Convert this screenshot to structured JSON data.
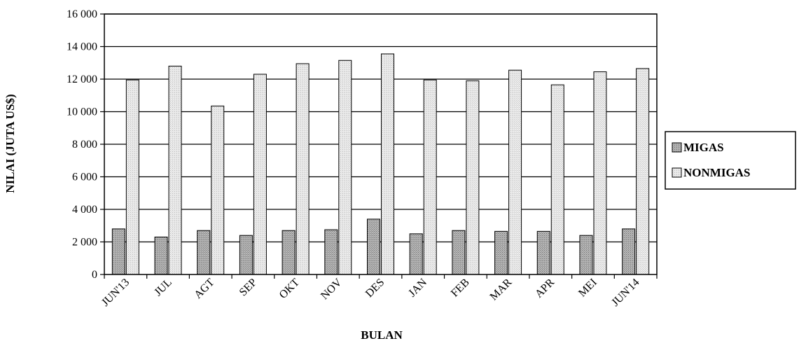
{
  "chart_data": {
    "type": "bar",
    "title": "",
    "xlabel": "BULAN",
    "ylabel": "NILAI (JUTA US$)",
    "ylim": [
      0,
      16000
    ],
    "y_ticks": [
      "0",
      "2 000",
      "4 000",
      "6 000",
      "8 000",
      "10 000",
      "12 000",
      "14 000",
      "16 000"
    ],
    "categories": [
      "JUN'13",
      "JUL",
      "AGT",
      "SEP",
      "OKT",
      "NOV",
      "DES",
      "JAN",
      "FEB",
      "MAR",
      "APR",
      "MEI",
      "JUN'14"
    ],
    "series": [
      {
        "name": "MIGAS",
        "values": [
          2800,
          2300,
          2700,
          2400,
          2700,
          2750,
          3400,
          2500,
          2700,
          2650,
          2650,
          2400,
          2800
        ]
      },
      {
        "name": "NONMIGAS",
        "values": [
          11950,
          12800,
          10350,
          12300,
          12950,
          13150,
          13550,
          11950,
          11900,
          12550,
          11650,
          12450,
          12650
        ]
      }
    ],
    "grid": "horizontal",
    "legend": "right",
    "colors": {
      "MIGAS": "#9a9a9a",
      "NONMIGAS": "#e6e6e6",
      "stroke": "#000000",
      "background": "#ffffff"
    }
  }
}
